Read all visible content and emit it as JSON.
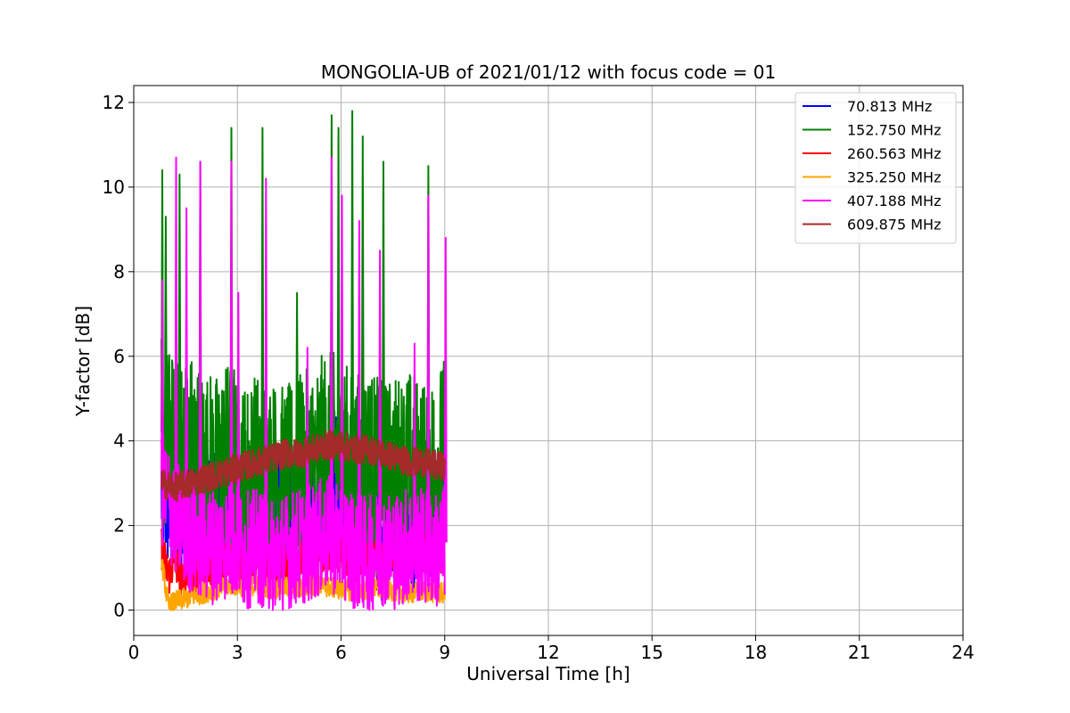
{
  "chart_data": {
    "type": "line",
    "title": "MONGOLIA-UB of 2021/01/12 with focus code = 01",
    "xlabel": "Universal Time [h]",
    "ylabel": "Y-factor [dB]",
    "xlim": [
      0,
      24
    ],
    "ylim": [
      -0.6,
      12.4
    ],
    "xticks": [
      0,
      3,
      6,
      9,
      12,
      15,
      18,
      21,
      24
    ],
    "yticks": [
      0,
      2,
      4,
      6,
      8,
      10,
      12
    ],
    "x_tick_labels": [
      "0",
      "3",
      "6",
      "9",
      "12",
      "15",
      "18",
      "21",
      "24"
    ],
    "y_tick_labels": [
      "0",
      "2",
      "4",
      "6",
      "8",
      "10",
      "12"
    ],
    "grid": true,
    "legend_position": "top-right",
    "series": [
      {
        "name": "  70.813 MHz",
        "color": "#0000ff",
        "x": [
          0.8,
          1.2,
          1.6,
          2.0,
          2.4,
          2.8,
          3.2,
          3.6,
          4.0,
          4.4,
          4.8,
          5.2,
          5.6,
          6.0,
          6.4,
          6.8,
          7.2,
          7.6,
          8.0,
          8.4,
          8.8,
          9.0
        ],
        "values": [
          2.8,
          2.1,
          2.4,
          2.6,
          2.3,
          2.5,
          2.2,
          2.4,
          2.3,
          2.2,
          2.5,
          2.6,
          2.9,
          3.0,
          2.2,
          2.3,
          1.8,
          2.1,
          2.0,
          2.2,
          2.5,
          2.8
        ]
      },
      {
        "name": "152.750 MHz",
        "color": "#008000",
        "x": [
          0.8,
          1.2,
          1.6,
          2.0,
          2.4,
          2.8,
          3.2,
          3.6,
          4.0,
          4.4,
          4.8,
          5.2,
          5.6,
          6.0,
          6.4,
          6.8,
          7.2,
          7.6,
          8.0,
          8.4,
          8.8,
          9.0
        ],
        "values": [
          4.2,
          3.5,
          3.8,
          3.4,
          3.2,
          3.6,
          3.0,
          3.3,
          3.1,
          2.9,
          3.2,
          3.4,
          3.8,
          3.6,
          3.2,
          3.4,
          3.0,
          3.2,
          3.3,
          3.1,
          3.4,
          3.6
        ],
        "peaks": [
          [
            0.8,
            10.4
          ],
          [
            0.9,
            9.3
          ],
          [
            1.3,
            10.3
          ],
          [
            1.9,
            10.6
          ],
          [
            2.8,
            11.4
          ],
          [
            3.7,
            11.4
          ],
          [
            4.7,
            7.5
          ],
          [
            5.7,
            11.7
          ],
          [
            5.9,
            11.4
          ],
          [
            6.3,
            11.8
          ],
          [
            6.6,
            11.2
          ],
          [
            7.2,
            10.6
          ],
          [
            8.5,
            10.5
          ]
        ]
      },
      {
        "name": "260.563 MHz",
        "color": "#ff0000",
        "x": [
          0.8,
          1.0,
          1.2,
          1.4,
          1.6,
          1.8,
          2.0,
          2.4,
          2.8,
          3.2,
          3.6,
          4.0,
          4.4,
          4.8,
          5.2,
          5.6,
          6.0,
          6.4,
          6.8,
          7.2,
          7.6,
          8.0,
          8.4,
          8.8,
          9.0
        ],
        "values": [
          1.5,
          0.8,
          1.2,
          0.6,
          1.0,
          0.7,
          1.1,
          0.9,
          1.3,
          1.0,
          1.2,
          1.1,
          1.0,
          1.3,
          1.2,
          1.4,
          1.3,
          1.1,
          1.2,
          1.1,
          1.3,
          1.2,
          1.4,
          1.3,
          1.4
        ]
      },
      {
        "name": "325.250 MHz",
        "color": "#ffa500",
        "x": [
          0.8,
          1.0,
          1.2,
          1.6,
          2.0,
          2.4,
          2.8,
          3.2,
          3.6,
          4.0,
          4.4,
          4.8,
          5.2,
          5.6,
          6.0,
          6.4,
          6.8,
          7.2,
          7.6,
          8.0,
          8.4,
          8.8,
          9.0
        ],
        "values": [
          1.2,
          0.1,
          0.2,
          0.3,
          0.4,
          0.5,
          0.6,
          0.55,
          0.6,
          0.5,
          0.55,
          0.5,
          0.6,
          0.55,
          0.5,
          0.45,
          0.5,
          0.5,
          0.45,
          0.4,
          0.45,
          0.4,
          0.4
        ]
      },
      {
        "name": "407.188 MHz",
        "color": "#ff00ff",
        "x": [
          0.8,
          1.2,
          1.6,
          2.0,
          2.4,
          2.8,
          3.2,
          3.6,
          4.0,
          4.4,
          4.8,
          5.2,
          5.6,
          6.0,
          6.4,
          6.8,
          7.2,
          7.6,
          8.0,
          8.4,
          8.8,
          9.0
        ],
        "values": [
          2.9,
          2.2,
          1.8,
          1.6,
          1.5,
          1.7,
          1.4,
          1.5,
          1.3,
          1.4,
          1.5,
          1.6,
          1.8,
          1.7,
          1.4,
          1.3,
          1.5,
          1.4,
          1.6,
          1.5,
          1.4,
          1.6
        ],
        "peaks": [
          [
            0.8,
            7.8
          ],
          [
            1.2,
            10.7
          ],
          [
            1.5,
            9.5
          ],
          [
            1.9,
            10.6
          ],
          [
            2.8,
            10.6
          ],
          [
            3.0,
            7.5
          ],
          [
            3.8,
            10.2
          ],
          [
            5.0,
            6.2
          ],
          [
            5.7,
            10.7
          ],
          [
            6.0,
            9.8
          ],
          [
            6.5,
            9.2
          ],
          [
            7.1,
            8.5
          ],
          [
            8.1,
            6.3
          ],
          [
            8.5,
            9.8
          ],
          [
            9.0,
            8.8
          ]
        ]
      },
      {
        "name": "609.875 MHz",
        "color": "#a52a2a",
        "x": [
          0.8,
          1.2,
          1.6,
          2.0,
          2.4,
          2.8,
          3.2,
          3.6,
          4.0,
          4.4,
          4.8,
          5.2,
          5.6,
          6.0,
          6.4,
          6.8,
          7.2,
          7.6,
          8.0,
          8.4,
          8.8,
          9.0
        ],
        "values": [
          3.0,
          2.9,
          3.0,
          3.1,
          3.2,
          3.3,
          3.4,
          3.5,
          3.6,
          3.7,
          3.7,
          3.8,
          3.9,
          3.9,
          3.8,
          3.8,
          3.7,
          3.6,
          3.5,
          3.5,
          3.4,
          3.4
        ]
      }
    ]
  }
}
